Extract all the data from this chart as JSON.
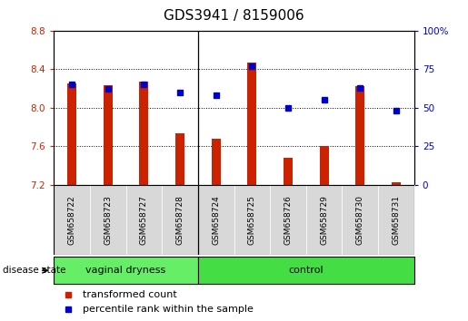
{
  "title": "GDS3941 / 8159006",
  "samples": [
    "GSM658722",
    "GSM658723",
    "GSM658727",
    "GSM658728",
    "GSM658724",
    "GSM658725",
    "GSM658726",
    "GSM658729",
    "GSM658730",
    "GSM658731"
  ],
  "bar_values": [
    8.25,
    8.23,
    8.27,
    7.73,
    7.68,
    8.47,
    7.48,
    7.6,
    8.22,
    7.22
  ],
  "percentile_values": [
    65,
    62,
    65,
    60,
    58,
    77,
    50,
    55,
    63,
    48
  ],
  "ylim_left": [
    7.2,
    8.8
  ],
  "ylim_right": [
    0,
    100
  ],
  "yticks_left": [
    7.2,
    7.6,
    8.0,
    8.4,
    8.8
  ],
  "yticks_right": [
    0,
    25,
    50,
    75,
    100
  ],
  "bar_color": "#cc2200",
  "square_color": "#0000cc",
  "disease_groups": [
    {
      "label": "vaginal dryness",
      "start": 0,
      "end": 4,
      "color": "#66ee66"
    },
    {
      "label": "control",
      "start": 4,
      "end": 10,
      "color": "#44dd44"
    }
  ],
  "disease_state_label": "disease state",
  "legend_bar_label": "transformed count",
  "legend_sq_label": "percentile rank within the sample",
  "separator_after": 3,
  "sample_bg_color": "#d8d8d8",
  "title_fontsize": 11,
  "tick_fontsize": 7.5,
  "sample_fontsize": 6.5,
  "disease_fontsize": 8,
  "legend_fontsize": 8
}
